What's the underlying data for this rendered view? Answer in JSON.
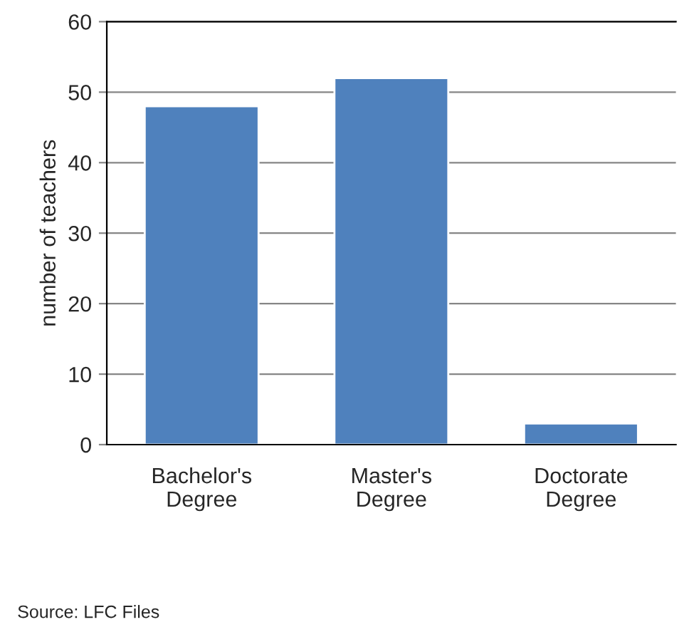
{
  "chart_data": {
    "type": "bar",
    "ylabel": "number of teachers",
    "categories": [
      "Bachelor's\nDegree",
      "Master's\nDegree",
      "Doctorate\nDegree"
    ],
    "values": [
      48,
      52,
      3
    ],
    "color": "#4f81bd",
    "ylim": [
      0,
      60
    ],
    "yticks": [
      0,
      10,
      20,
      30,
      40,
      50,
      60
    ],
    "grid": "y",
    "annotations": [
      "Source: LFC Files"
    ]
  }
}
